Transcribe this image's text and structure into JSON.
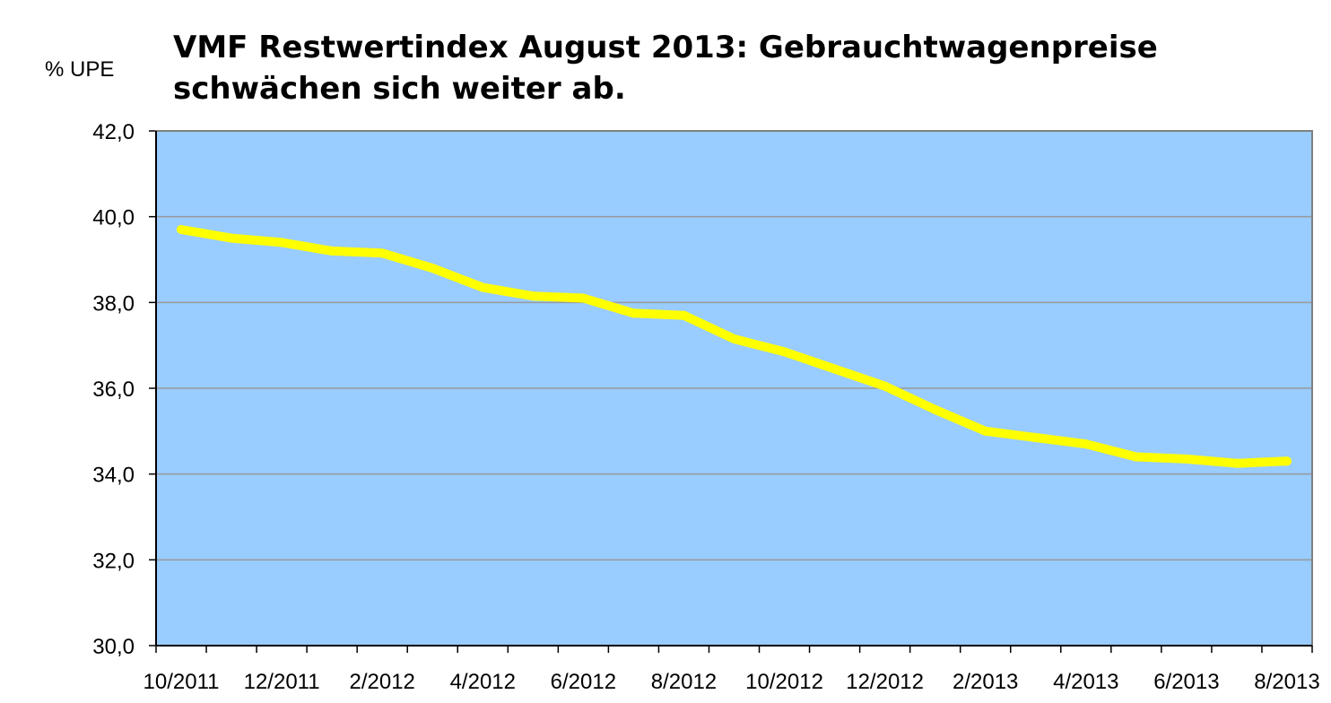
{
  "chart_data": {
    "type": "line",
    "title_lines": [
      "VMF Restwertindex August 2013: Gebrauchtwagenpreise",
      "schwächen sich weiter ab."
    ],
    "ylabel": "% UPE",
    "xlabel": "",
    "ylim": [
      30.0,
      42.0
    ],
    "yticks": [
      "30,0",
      "32,0",
      "34,0",
      "36,0",
      "38,0",
      "40,0",
      "42,0"
    ],
    "ytick_values": [
      30,
      32,
      34,
      36,
      38,
      40,
      42
    ],
    "xticks": [
      "10/2011",
      "12/2011",
      "2/2012",
      "4/2012",
      "6/2012",
      "8/2012",
      "10/2012",
      "12/2012",
      "2/2013",
      "4/2013",
      "6/2013",
      "8/2013"
    ],
    "x": [
      "10/2011",
      "11/2011",
      "12/2011",
      "1/2012",
      "2/2012",
      "3/2012",
      "4/2012",
      "5/2012",
      "6/2012",
      "7/2012",
      "8/2012",
      "9/2012",
      "10/2012",
      "11/2012",
      "12/2012",
      "1/2013",
      "2/2013",
      "3/2013",
      "4/2013",
      "5/2013",
      "6/2013",
      "7/2013",
      "8/2013"
    ],
    "series": [
      {
        "values": [
          39.7,
          39.5,
          39.4,
          39.2,
          39.15,
          38.8,
          38.35,
          38.15,
          38.1,
          37.75,
          37.7,
          37.15,
          36.85,
          36.45,
          36.05,
          35.5,
          35.0,
          34.85,
          34.7,
          34.4,
          34.35,
          34.25,
          34.3
        ]
      }
    ],
    "grid": true,
    "colors": {
      "plot_background": "#99ccff",
      "line": "#ffff00",
      "gridline": "#999999",
      "axis": "#000000"
    }
  }
}
